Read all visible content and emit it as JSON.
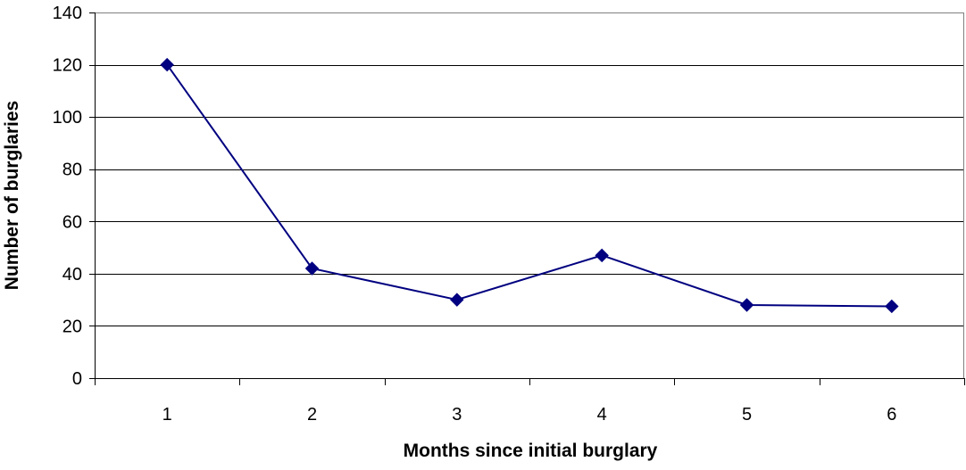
{
  "chart_data": {
    "type": "line",
    "title": "",
    "xlabel": "Months since initial burglary",
    "ylabel": "Number of burglaries",
    "x": [
      1,
      2,
      3,
      4,
      5,
      6
    ],
    "categories": [
      "1",
      "2",
      "3",
      "4",
      "5",
      "6"
    ],
    "series": [
      {
        "values": [
          120,
          42,
          30,
          47,
          28,
          27.5
        ],
        "color": "#000080",
        "marker": "diamond"
      }
    ],
    "ylim": [
      0,
      140
    ],
    "yticks": [
      0,
      20,
      40,
      60,
      80,
      100,
      120,
      140
    ],
    "ytick_labels": [
      "0",
      "20",
      "40",
      "60",
      "80",
      "100",
      "120",
      "140"
    ],
    "grid": true,
    "legend": "none"
  }
}
